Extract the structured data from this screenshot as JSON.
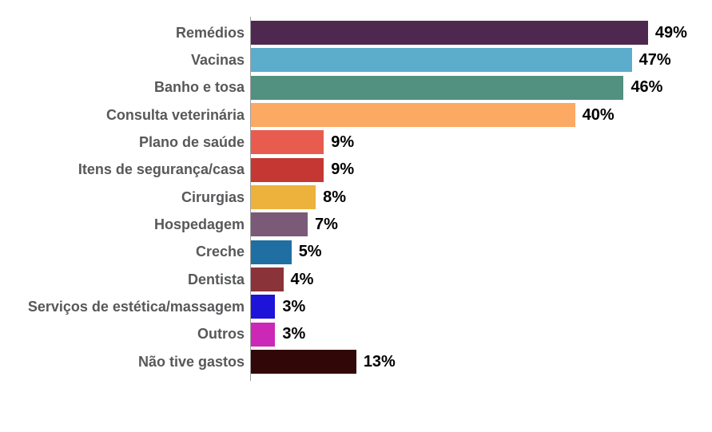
{
  "chart_data": {
    "type": "bar",
    "orientation": "horizontal",
    "title": "",
    "xlabel": "",
    "ylabel": "",
    "grid": false,
    "legend": false,
    "value_suffix": "%",
    "xlim": [
      0,
      57
    ],
    "categories": [
      "Remédios",
      "Vacinas",
      "Banho e tosa",
      "Consulta veterinária",
      "Plano de saúde",
      "Itens de segurança/casa",
      "Cirurgias",
      "Hospedagem",
      "Creche",
      "Dentista",
      "Serviços de estética/massagem",
      "Outros",
      "Não tive gastos"
    ],
    "values": [
      49,
      47,
      46,
      40,
      9,
      9,
      8,
      7,
      5,
      4,
      3,
      3,
      13
    ],
    "value_labels": [
      "49%",
      "47%",
      "46%",
      "40%",
      "9%",
      "9%",
      "8%",
      "7%",
      "5%",
      "4%",
      "3%",
      "3%",
      "13%"
    ],
    "bar_colors": [
      "#4F2850",
      "#5BADCB",
      "#52917F",
      "#FBA963",
      "#E85C50",
      "#C53732",
      "#EDB23C",
      "#7B5A78",
      "#1F6FA2",
      "#8A3439",
      "#1D13D9",
      "#CC28B8",
      "#320707"
    ]
  },
  "styles": {
    "background": "#FFFFFF",
    "category_label_color": "#57585A",
    "value_label_color": "#000000",
    "axis_line_color": "#9E9E9E"
  }
}
